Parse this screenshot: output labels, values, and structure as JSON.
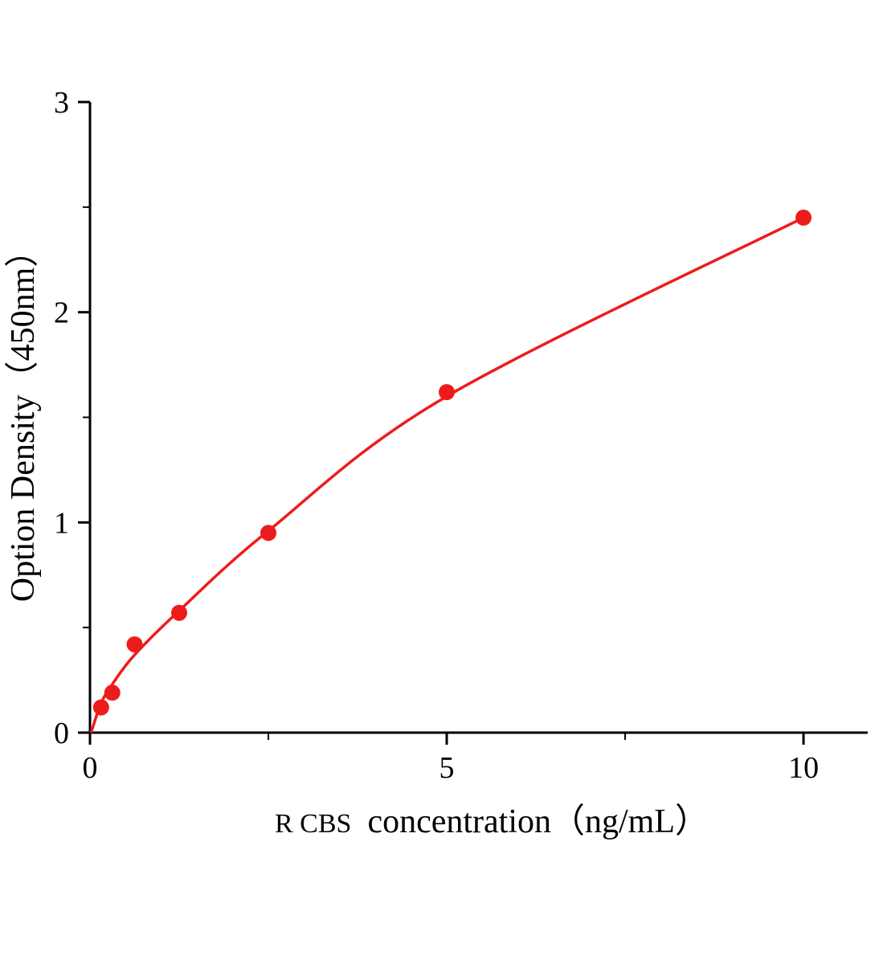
{
  "chart_data": {
    "type": "scatter",
    "title": "",
    "ylabel": "Option Density（450nm）",
    "xlabel_prefix": "R CBS",
    "xlabel_main": "concentration（ng/mL）",
    "x": [
      0.156,
      0.3125,
      0.625,
      1.25,
      2.5,
      5,
      10
    ],
    "y": [
      0.12,
      0.19,
      0.42,
      0.57,
      0.95,
      1.62,
      2.45
    ],
    "curve_points": [
      [
        0.02,
        0.005
      ],
      [
        0.156,
        0.14
      ],
      [
        0.3125,
        0.23
      ],
      [
        0.625,
        0.37
      ],
      [
        1.25,
        0.58
      ],
      [
        2.5,
        0.96
      ],
      [
        5,
        1.6
      ],
      [
        10,
        2.45
      ]
    ],
    "xlim": [
      0,
      10.9
    ],
    "ylim": [
      0,
      3
    ],
    "xticks": [
      0,
      5,
      10
    ],
    "xminor": [
      2.5,
      7.5
    ],
    "yticks": [
      0,
      1,
      2,
      3
    ],
    "yminor": [
      0.5,
      1.5,
      2.5
    ],
    "grid": false,
    "legend": "none",
    "accent_color": "#ed1c1c",
    "axis_color": "#000000",
    "marker_radius": 10
  }
}
